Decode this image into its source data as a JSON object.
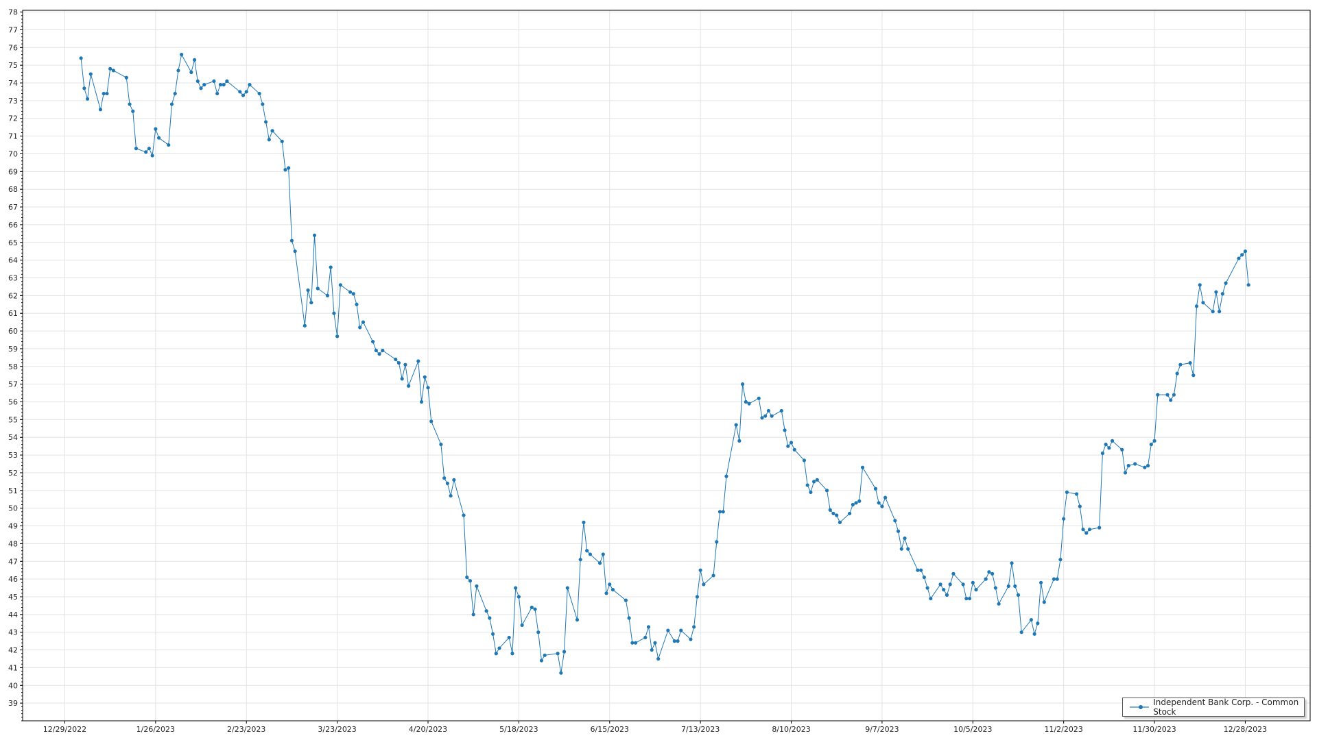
{
  "chart_data": {
    "type": "line",
    "title": "",
    "xlabel": "",
    "ylabel": "",
    "xlim": [
      "2022-12-16",
      "2024-01-17"
    ],
    "ylim": [
      38,
      78.1
    ],
    "grid": true,
    "legend_position": "bottom-right",
    "x_tick_labels": [
      "12/29/2022",
      "1/26/2023",
      "2/23/2023",
      "3/23/2023",
      "4/20/2023",
      "5/18/2023",
      "6/15/2023",
      "7/13/2023",
      "8/10/2023",
      "9/7/2023",
      "10/5/2023",
      "11/2/2023",
      "11/30/2023",
      "12/28/2023"
    ],
    "y_ticks": [
      39,
      40,
      41,
      42,
      43,
      44,
      45,
      46,
      47,
      48,
      49,
      50,
      51,
      52,
      53,
      54,
      55,
      56,
      57,
      58,
      59,
      60,
      61,
      62,
      63,
      64,
      65,
      66,
      67,
      68,
      69,
      70,
      71,
      72,
      73,
      74,
      75,
      76,
      77,
      78
    ],
    "series": [
      {
        "name": "Independent Bank Corp. - Common Stock",
        "color": "#1f77b4",
        "points": [
          [
            "2023-01-03",
            75.4
          ],
          [
            "2023-01-04",
            73.7
          ],
          [
            "2023-01-05",
            73.1
          ],
          [
            "2023-01-06",
            74.5
          ],
          [
            "2023-01-09",
            72.5
          ],
          [
            "2023-01-10",
            73.4
          ],
          [
            "2023-01-11",
            73.4
          ],
          [
            "2023-01-12",
            74.8
          ],
          [
            "2023-01-13",
            74.7
          ],
          [
            "2023-01-17",
            74.3
          ],
          [
            "2023-01-18",
            72.8
          ],
          [
            "2023-01-19",
            72.4
          ],
          [
            "2023-01-20",
            70.3
          ],
          [
            "2023-01-23",
            70.1
          ],
          [
            "2023-01-24",
            70.3
          ],
          [
            "2023-01-25",
            69.9
          ],
          [
            "2023-01-26",
            71.4
          ],
          [
            "2023-01-27",
            70.9
          ],
          [
            "2023-01-30",
            70.5
          ],
          [
            "2023-01-31",
            72.8
          ],
          [
            "2023-02-01",
            73.4
          ],
          [
            "2023-02-02",
            74.7
          ],
          [
            "2023-02-03",
            75.6
          ],
          [
            "2023-02-06",
            74.6
          ],
          [
            "2023-02-07",
            75.3
          ],
          [
            "2023-02-08",
            74.1
          ],
          [
            "2023-02-09",
            73.7
          ],
          [
            "2023-02-10",
            73.9
          ],
          [
            "2023-02-13",
            74.1
          ],
          [
            "2023-02-14",
            73.4
          ],
          [
            "2023-02-15",
            73.9
          ],
          [
            "2023-02-16",
            73.9
          ],
          [
            "2023-02-17",
            74.1
          ],
          [
            "2023-02-21",
            73.5
          ],
          [
            "2023-02-22",
            73.3
          ],
          [
            "2023-02-23",
            73.5
          ],
          [
            "2023-02-24",
            73.9
          ],
          [
            "2023-02-27",
            73.4
          ],
          [
            "2023-02-28",
            72.8
          ],
          [
            "2023-03-01",
            71.8
          ],
          [
            "2023-03-02",
            70.8
          ],
          [
            "2023-03-03",
            71.3
          ],
          [
            "2023-03-06",
            70.7
          ],
          [
            "2023-03-07",
            69.1
          ],
          [
            "2023-03-08",
            69.2
          ],
          [
            "2023-03-09",
            65.1
          ],
          [
            "2023-03-10",
            64.5
          ],
          [
            "2023-03-13",
            60.3
          ],
          [
            "2023-03-14",
            62.3
          ],
          [
            "2023-03-15",
            61.6
          ],
          [
            "2023-03-16",
            65.4
          ],
          [
            "2023-03-17",
            62.4
          ],
          [
            "2023-03-20",
            62.0
          ],
          [
            "2023-03-21",
            63.6
          ],
          [
            "2023-03-22",
            61.0
          ],
          [
            "2023-03-23",
            59.7
          ],
          [
            "2023-03-24",
            62.6
          ],
          [
            "2023-03-27",
            62.2
          ],
          [
            "2023-03-28",
            62.1
          ],
          [
            "2023-03-29",
            61.5
          ],
          [
            "2023-03-30",
            60.2
          ],
          [
            "2023-03-31",
            60.5
          ],
          [
            "2023-04-03",
            59.4
          ],
          [
            "2023-04-04",
            58.9
          ],
          [
            "2023-04-05",
            58.7
          ],
          [
            "2023-04-06",
            58.9
          ],
          [
            "2023-04-10",
            58.4
          ],
          [
            "2023-04-11",
            58.2
          ],
          [
            "2023-04-12",
            57.3
          ],
          [
            "2023-04-13",
            58.1
          ],
          [
            "2023-04-14",
            56.9
          ],
          [
            "2023-04-17",
            58.3
          ],
          [
            "2023-04-18",
            56.0
          ],
          [
            "2023-04-19",
            57.4
          ],
          [
            "2023-04-20",
            56.8
          ],
          [
            "2023-04-21",
            54.9
          ],
          [
            "2023-04-24",
            53.6
          ],
          [
            "2023-04-25",
            51.7
          ],
          [
            "2023-04-26",
            51.4
          ],
          [
            "2023-04-27",
            50.7
          ],
          [
            "2023-04-28",
            51.6
          ],
          [
            "2023-05-01",
            49.6
          ],
          [
            "2023-05-02",
            46.1
          ],
          [
            "2023-05-03",
            45.9
          ],
          [
            "2023-05-04",
            44.0
          ],
          [
            "2023-05-05",
            45.6
          ],
          [
            "2023-05-08",
            44.2
          ],
          [
            "2023-05-09",
            43.8
          ],
          [
            "2023-05-10",
            42.9
          ],
          [
            "2023-05-11",
            41.8
          ],
          [
            "2023-05-12",
            42.1
          ],
          [
            "2023-05-15",
            42.7
          ],
          [
            "2023-05-16",
            41.8
          ],
          [
            "2023-05-17",
            45.5
          ],
          [
            "2023-05-18",
            45.0
          ],
          [
            "2023-05-19",
            43.4
          ],
          [
            "2023-05-22",
            44.4
          ],
          [
            "2023-05-23",
            44.3
          ],
          [
            "2023-05-24",
            43.0
          ],
          [
            "2023-05-25",
            41.4
          ],
          [
            "2023-05-26",
            41.7
          ],
          [
            "2023-05-30",
            41.8
          ],
          [
            "2023-05-31",
            40.7
          ],
          [
            "2023-06-01",
            41.9
          ],
          [
            "2023-06-02",
            45.5
          ],
          [
            "2023-06-05",
            43.7
          ],
          [
            "2023-06-06",
            47.1
          ],
          [
            "2023-06-07",
            49.2
          ],
          [
            "2023-06-08",
            47.6
          ],
          [
            "2023-06-09",
            47.4
          ],
          [
            "2023-06-12",
            46.9
          ],
          [
            "2023-06-13",
            47.4
          ],
          [
            "2023-06-14",
            45.2
          ],
          [
            "2023-06-15",
            45.7
          ],
          [
            "2023-06-16",
            45.4
          ],
          [
            "2023-06-20",
            44.8
          ],
          [
            "2023-06-21",
            43.8
          ],
          [
            "2023-06-22",
            42.4
          ],
          [
            "2023-06-23",
            42.4
          ],
          [
            "2023-06-26",
            42.7
          ],
          [
            "2023-06-27",
            43.3
          ],
          [
            "2023-06-28",
            42.0
          ],
          [
            "2023-06-29",
            42.4
          ],
          [
            "2023-06-30",
            41.5
          ],
          [
            "2023-07-03",
            43.1
          ],
          [
            "2023-07-05",
            42.5
          ],
          [
            "2023-07-06",
            42.5
          ],
          [
            "2023-07-07",
            43.1
          ],
          [
            "2023-07-10",
            42.6
          ],
          [
            "2023-07-11",
            43.3
          ],
          [
            "2023-07-12",
            45.0
          ],
          [
            "2023-07-13",
            46.5
          ],
          [
            "2023-07-14",
            45.7
          ],
          [
            "2023-07-17",
            46.2
          ],
          [
            "2023-07-18",
            48.1
          ],
          [
            "2023-07-19",
            49.8
          ],
          [
            "2023-07-20",
            49.8
          ],
          [
            "2023-07-21",
            51.8
          ],
          [
            "2023-07-24",
            54.7
          ],
          [
            "2023-07-25",
            53.8
          ],
          [
            "2023-07-26",
            57.0
          ],
          [
            "2023-07-27",
            56.0
          ],
          [
            "2023-07-28",
            55.9
          ],
          [
            "2023-07-31",
            56.2
          ],
          [
            "2023-08-01",
            55.1
          ],
          [
            "2023-08-02",
            55.2
          ],
          [
            "2023-08-03",
            55.5
          ],
          [
            "2023-08-04",
            55.2
          ],
          [
            "2023-08-07",
            55.5
          ],
          [
            "2023-08-08",
            54.4
          ],
          [
            "2023-08-09",
            53.5
          ],
          [
            "2023-08-10",
            53.7
          ],
          [
            "2023-08-11",
            53.3
          ],
          [
            "2023-08-14",
            52.7
          ],
          [
            "2023-08-15",
            51.3
          ],
          [
            "2023-08-16",
            50.9
          ],
          [
            "2023-08-17",
            51.5
          ],
          [
            "2023-08-18",
            51.6
          ],
          [
            "2023-08-21",
            51.0
          ],
          [
            "2023-08-22",
            49.9
          ],
          [
            "2023-08-23",
            49.7
          ],
          [
            "2023-08-24",
            49.6
          ],
          [
            "2023-08-25",
            49.2
          ],
          [
            "2023-08-28",
            49.7
          ],
          [
            "2023-08-29",
            50.2
          ],
          [
            "2023-08-30",
            50.3
          ],
          [
            "2023-08-31",
            50.4
          ],
          [
            "2023-09-01",
            52.3
          ],
          [
            "2023-09-05",
            51.1
          ],
          [
            "2023-09-06",
            50.3
          ],
          [
            "2023-09-07",
            50.1
          ],
          [
            "2023-09-08",
            50.6
          ],
          [
            "2023-09-11",
            49.3
          ],
          [
            "2023-09-12",
            48.7
          ],
          [
            "2023-09-13",
            47.7
          ],
          [
            "2023-09-14",
            48.3
          ],
          [
            "2023-09-15",
            47.7
          ],
          [
            "2023-09-18",
            46.5
          ],
          [
            "2023-09-19",
            46.5
          ],
          [
            "2023-09-20",
            46.1
          ],
          [
            "2023-09-21",
            45.5
          ],
          [
            "2023-09-22",
            44.9
          ],
          [
            "2023-09-25",
            45.7
          ],
          [
            "2023-09-26",
            45.4
          ],
          [
            "2023-09-27",
            45.1
          ],
          [
            "2023-09-28",
            45.7
          ],
          [
            "2023-09-29",
            46.3
          ],
          [
            "2023-10-02",
            45.7
          ],
          [
            "2023-10-03",
            44.9
          ],
          [
            "2023-10-04",
            44.9
          ],
          [
            "2023-10-05",
            45.8
          ],
          [
            "2023-10-06",
            45.4
          ],
          [
            "2023-10-09",
            46.0
          ],
          [
            "2023-10-10",
            46.4
          ],
          [
            "2023-10-11",
            46.3
          ],
          [
            "2023-10-12",
            45.5
          ],
          [
            "2023-10-13",
            44.6
          ],
          [
            "2023-10-16",
            45.6
          ],
          [
            "2023-10-17",
            46.9
          ],
          [
            "2023-10-18",
            45.6
          ],
          [
            "2023-10-19",
            45.1
          ],
          [
            "2023-10-20",
            43.0
          ],
          [
            "2023-10-23",
            43.7
          ],
          [
            "2023-10-24",
            42.9
          ],
          [
            "2023-10-25",
            43.5
          ],
          [
            "2023-10-26",
            45.8
          ],
          [
            "2023-10-27",
            44.7
          ],
          [
            "2023-10-30",
            46.0
          ],
          [
            "2023-10-31",
            46.0
          ],
          [
            "2023-11-01",
            47.1
          ],
          [
            "2023-11-02",
            49.4
          ],
          [
            "2023-11-03",
            50.9
          ],
          [
            "2023-11-06",
            50.8
          ],
          [
            "2023-11-07",
            50.1
          ],
          [
            "2023-11-08",
            48.8
          ],
          [
            "2023-11-09",
            48.6
          ],
          [
            "2023-11-10",
            48.8
          ],
          [
            "2023-11-13",
            48.9
          ],
          [
            "2023-11-14",
            53.1
          ],
          [
            "2023-11-15",
            53.6
          ],
          [
            "2023-11-16",
            53.4
          ],
          [
            "2023-11-17",
            53.8
          ],
          [
            "2023-11-20",
            53.3
          ],
          [
            "2023-11-21",
            52.0
          ],
          [
            "2023-11-22",
            52.4
          ],
          [
            "2023-11-24",
            52.5
          ],
          [
            "2023-11-27",
            52.3
          ],
          [
            "2023-11-28",
            52.4
          ],
          [
            "2023-11-29",
            53.6
          ],
          [
            "2023-11-30",
            53.8
          ],
          [
            "2023-12-01",
            56.4
          ],
          [
            "2023-12-04",
            56.4
          ],
          [
            "2023-12-05",
            56.1
          ],
          [
            "2023-12-06",
            56.4
          ],
          [
            "2023-12-07",
            57.6
          ],
          [
            "2023-12-08",
            58.1
          ],
          [
            "2023-12-11",
            58.2
          ],
          [
            "2023-12-12",
            57.5
          ],
          [
            "2023-12-13",
            61.4
          ],
          [
            "2023-12-14",
            62.6
          ],
          [
            "2023-12-15",
            61.6
          ],
          [
            "2023-12-18",
            61.1
          ],
          [
            "2023-12-19",
            62.2
          ],
          [
            "2023-12-20",
            61.1
          ],
          [
            "2023-12-21",
            62.1
          ],
          [
            "2023-12-22",
            62.7
          ],
          [
            "2023-12-26",
            64.1
          ],
          [
            "2023-12-27",
            64.3
          ],
          [
            "2023-12-28",
            64.5
          ],
          [
            "2023-12-29",
            62.6
          ]
        ]
      }
    ]
  }
}
